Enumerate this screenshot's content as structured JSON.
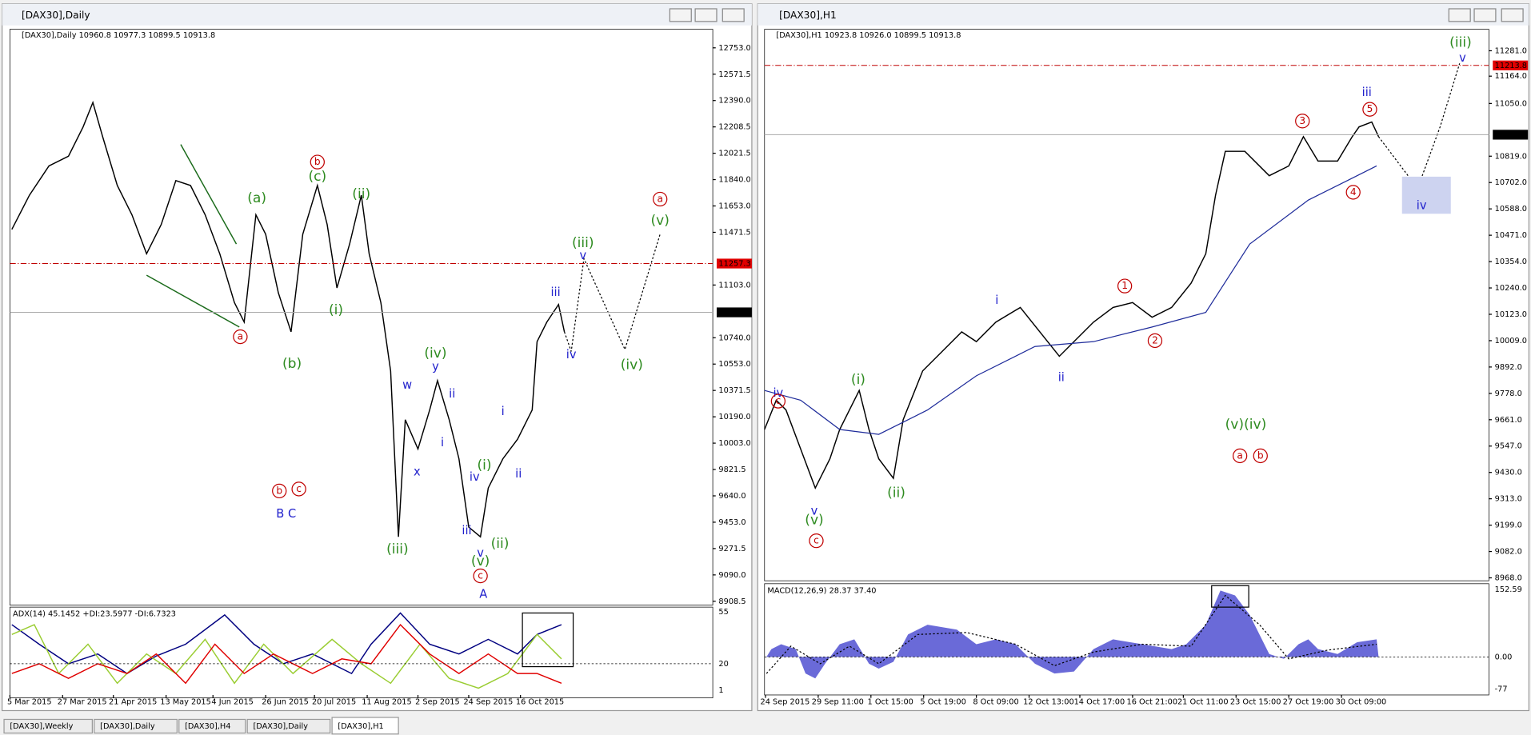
{
  "windows": [
    {
      "title": "[DAX30],Daily",
      "info": "[DAX30],Daily  10960.8 10977.3 10899.5 10913.8",
      "price_labels": [
        "12753.0",
        "12571.5",
        "12390.0",
        "12208.5",
        "12021.5",
        "11840.0",
        "11653.0",
        "11471.5",
        "11103.0",
        "10740.0",
        "10553.0",
        "10371.5",
        "10190.0",
        "10003.0",
        "9821.5",
        "9640.0",
        "9453.0",
        "9271.5",
        "9090.0",
        "8908.5"
      ],
      "current_price": "10913.8",
      "level_price": "11257.3",
      "dates": [
        "5 Mar 2015",
        "27 Mar 2015",
        "21 Apr 2015",
        "13 May 2015",
        "4 Jun 2015",
        "26 Jun 2015",
        "20 Jul 2015",
        "11 Aug 2015",
        "2 Sep 2015",
        "24 Sep 2015",
        "16 Oct 2015"
      ],
      "indicator": {
        "label": "ADX(14) 45.1452 +DI:23.5977 -DI:6.7323",
        "scale": [
          "55",
          "20",
          "1"
        ]
      },
      "waves": [
        {
          "text": "b",
          "color": "red",
          "circled": true
        },
        {
          "text": "(c)",
          "color": "green"
        },
        {
          "text": "(a)",
          "color": "green"
        },
        {
          "text": "(ii)",
          "color": "green"
        },
        {
          "text": "a",
          "color": "red",
          "circled": true
        },
        {
          "text": "(b)",
          "color": "green"
        },
        {
          "text": "(i)",
          "color": "green"
        },
        {
          "text": "(iv)",
          "color": "green"
        },
        {
          "text": "w",
          "color": "blue"
        },
        {
          "text": "y",
          "color": "blue"
        },
        {
          "text": "ii",
          "color": "blue"
        },
        {
          "text": "i",
          "color": "blue"
        },
        {
          "text": "x",
          "color": "blue"
        },
        {
          "text": "(iii)",
          "color": "green"
        },
        {
          "text": "i",
          "color": "blue"
        },
        {
          "text": "ii",
          "color": "blue"
        },
        {
          "text": "iv",
          "color": "blue"
        },
        {
          "text": "(i)",
          "color": "green"
        },
        {
          "text": "iii",
          "color": "blue"
        },
        {
          "text": "v",
          "color": "blue"
        },
        {
          "text": "(ii)",
          "color": "green"
        },
        {
          "text": "(v)",
          "color": "green"
        },
        {
          "text": "c",
          "color": "red",
          "circled": true
        },
        {
          "text": "A",
          "color": "blue"
        },
        {
          "text": "b",
          "color": "red",
          "circled": true
        },
        {
          "text": "c",
          "color": "red",
          "circled": true
        },
        {
          "text": "B C",
          "color": "blue"
        },
        {
          "text": "iii",
          "color": "blue"
        },
        {
          "text": "iv",
          "color": "blue"
        },
        {
          "text": "(iii)",
          "color": "green"
        },
        {
          "text": "v",
          "color": "blue"
        },
        {
          "text": "(iv)",
          "color": "green"
        },
        {
          "text": "a",
          "color": "red",
          "circled": true
        },
        {
          "text": "(v)",
          "color": "green"
        }
      ]
    },
    {
      "title": "[DAX30],H1",
      "info": "[DAX30],H1  10923.8 10926.0 10899.5 10913.8",
      "price_labels": [
        "11281.0",
        "11164.0",
        "11050.0",
        "10819.0",
        "10702.0",
        "10588.0",
        "10471.0",
        "10354.0",
        "10240.0",
        "10123.0",
        "10009.0",
        "9892.0",
        "9778.0",
        "9661.0",
        "9547.0",
        "9430.0",
        "9313.0",
        "9199.0",
        "9082.0",
        "8968.0"
      ],
      "current_price": "10913.8",
      "level_price": "11213.8",
      "dates": [
        "24 Sep 2015",
        "29 Sep 11:00",
        "1 Oct 15:00",
        "5 Oct 19:00",
        "8 Oct 09:00",
        "12 Oct 13:00",
        "14 Oct 17:00",
        "16 Oct 21:00",
        "21 Oct 11:00",
        "23 Oct 15:00",
        "27 Oct 19:00",
        "30 Oct 09:00"
      ],
      "indicator": {
        "label": "MACD(12,26,9) 28.37 37.40",
        "scale": [
          "152.59",
          "0.00",
          "-77"
        ]
      },
      "waves": [
        {
          "text": "iv",
          "color": "blue"
        },
        {
          "text": "c",
          "color": "red",
          "circled": true
        },
        {
          "text": "(i)",
          "color": "green"
        },
        {
          "text": "(ii)",
          "color": "green"
        },
        {
          "text": "v",
          "color": "blue"
        },
        {
          "text": "(v)",
          "color": "green"
        },
        {
          "text": "c",
          "color": "red",
          "circled": true
        },
        {
          "text": "i",
          "color": "blue"
        },
        {
          "text": "ii",
          "color": "blue"
        },
        {
          "text": "1",
          "color": "red",
          "circled": true
        },
        {
          "text": "2",
          "color": "red",
          "circled": true
        },
        {
          "text": "3",
          "color": "red",
          "circled": true
        },
        {
          "text": "4",
          "color": "red",
          "circled": true
        },
        {
          "text": "5",
          "color": "red",
          "circled": true
        },
        {
          "text": "iii",
          "color": "blue"
        },
        {
          "text": "iv",
          "color": "blue"
        },
        {
          "text": "(iii)",
          "color": "green"
        },
        {
          "text": "v",
          "color": "blue"
        },
        {
          "text": "(v)(iv)",
          "color": "green"
        },
        {
          "text": "a",
          "color": "red",
          "circled": true
        },
        {
          "text": "b",
          "color": "red",
          "circled": true
        }
      ]
    }
  ],
  "tabs": [
    "[DAX30],Weekly",
    "[DAX30],Daily",
    "[DAX30],H4",
    "[DAX30],Daily",
    "[DAX30],H1"
  ]
}
